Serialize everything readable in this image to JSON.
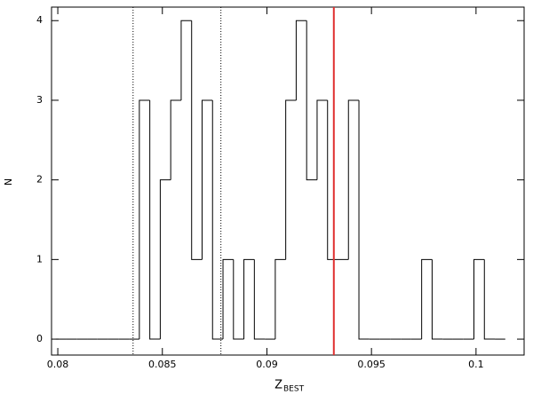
{
  "chart_data": {
    "type": "histogram",
    "xlabel": "Z",
    "xlabel_sub": "BEST",
    "ylabel": "N",
    "bins": [
      0.0799,
      0.0804,
      0.0809,
      0.0814,
      0.0819,
      0.0824,
      0.0829,
      0.0834,
      0.0839,
      0.0844,
      0.0849,
      0.0854,
      0.0859,
      0.0864,
      0.0869,
      0.0874,
      0.0879,
      0.0884,
      0.0889,
      0.0894,
      0.0899,
      0.0904,
      0.0909,
      0.0914,
      0.0919,
      0.0924,
      0.0929,
      0.0934,
      0.0939,
      0.0944,
      0.0949,
      0.0954,
      0.0959,
      0.0964,
      0.0969,
      0.0974,
      0.0979,
      0.0984,
      0.0989,
      0.0994,
      0.0999,
      0.1004,
      0.1009,
      0.1014
    ],
    "counts": [
      0,
      0,
      0,
      0,
      0,
      0,
      0,
      0,
      3,
      0,
      2,
      3,
      4,
      1,
      3,
      0,
      1,
      0,
      1,
      0,
      0,
      1,
      3,
      4,
      2,
      3,
      1,
      1,
      3,
      0,
      0,
      0,
      0,
      0,
      0,
      1,
      0,
      0,
      0,
      0,
      1,
      0,
      0
    ],
    "color": "#000000",
    "vlines": [
      {
        "x": 0.0836,
        "color": "#000000",
        "dashed": true
      },
      {
        "x": 0.0878,
        "color": "#000000",
        "dashed": true
      },
      {
        "x": 0.0932,
        "color": "#e03030",
        "dashed": false
      }
    ],
    "xlim": [
      0.0797,
      0.1023
    ],
    "ylim": [
      -0.2,
      4.17
    ],
    "xticks": [
      0.08,
      0.085,
      0.09,
      0.095,
      0.1
    ],
    "yticks": [
      0,
      1,
      2,
      3,
      4
    ]
  }
}
